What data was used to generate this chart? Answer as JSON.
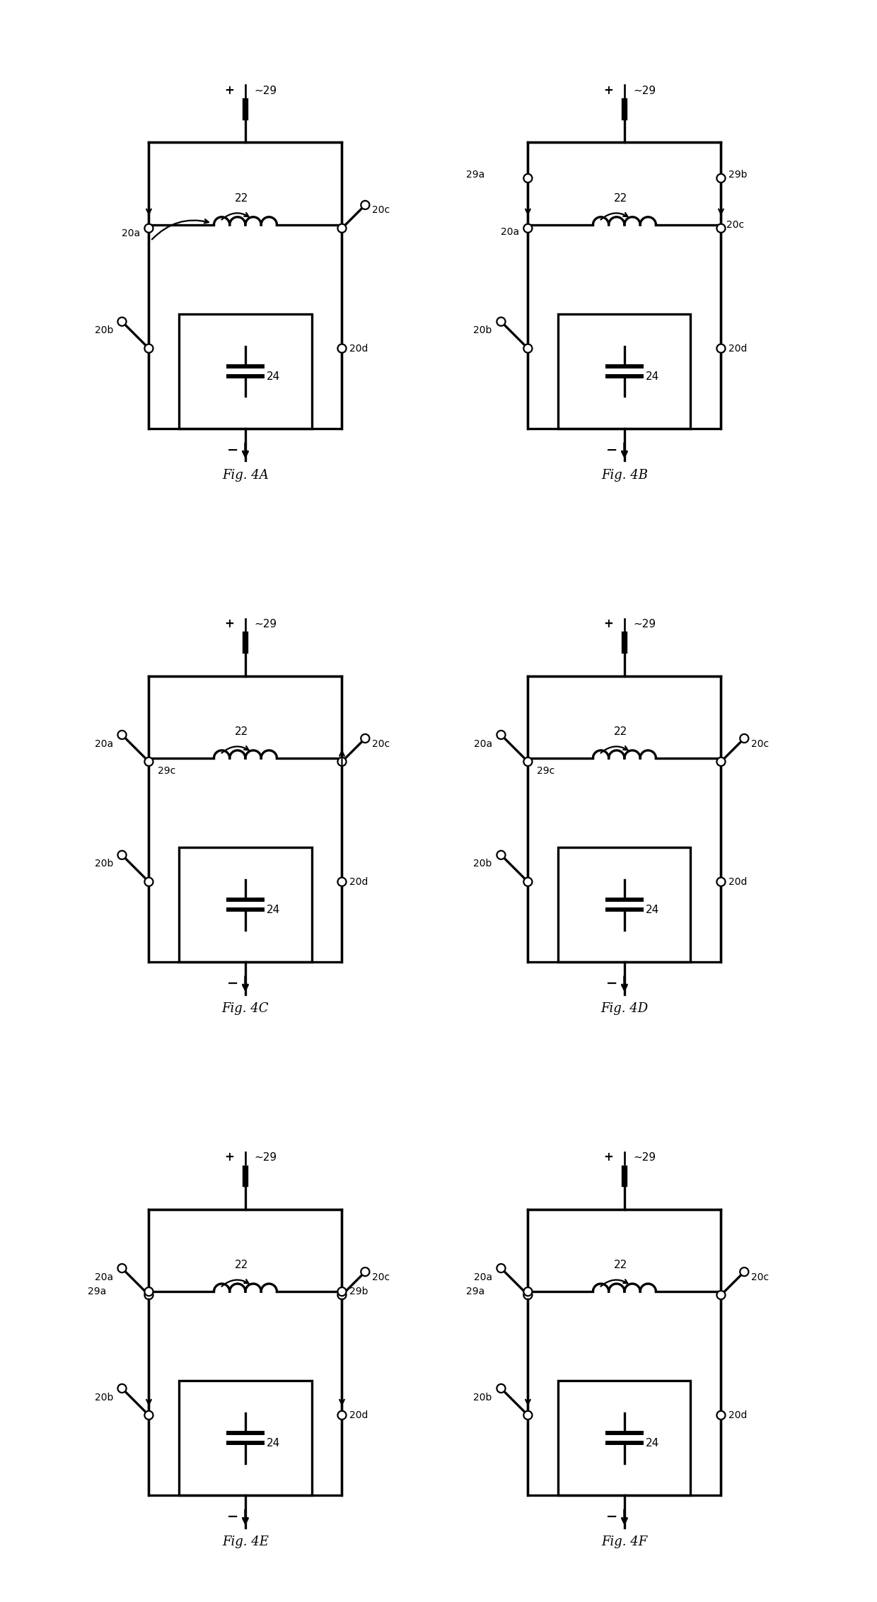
{
  "figures": [
    "4A",
    "4B",
    "4C",
    "4D",
    "4E",
    "4F"
  ],
  "background_color": "#ffffff",
  "line_color": "#000000",
  "lw": 1.6,
  "fig_width": 12.4,
  "fig_height": 22.65
}
